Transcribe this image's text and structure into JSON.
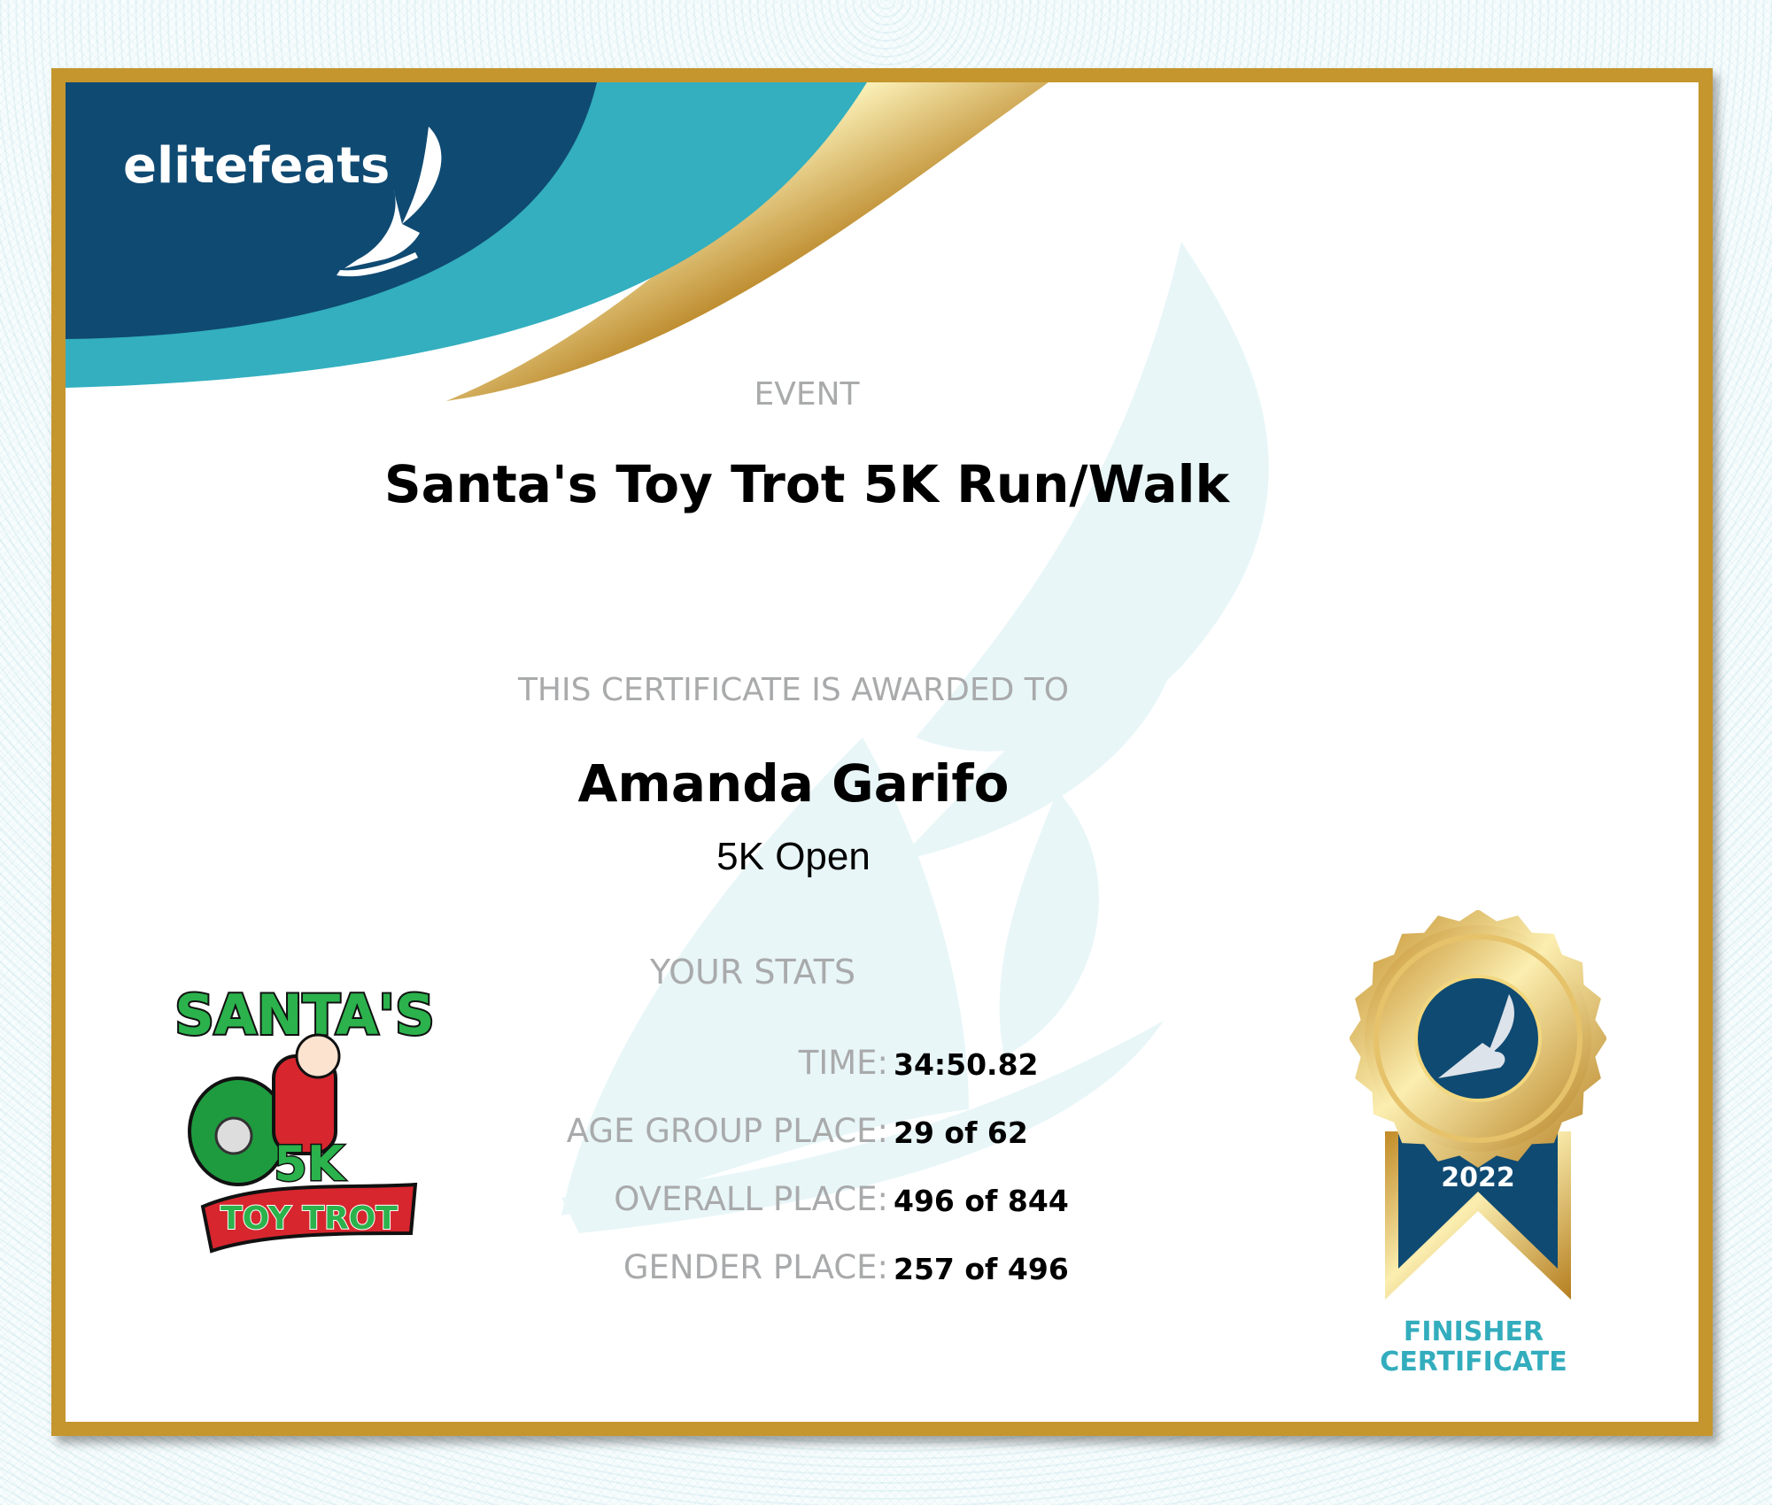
{
  "brand": {
    "logo_text": "elitefeats",
    "logo_icon": "winged-foot-icon"
  },
  "colors": {
    "navy": "#0f4a72",
    "teal": "#33afbf",
    "gold": "#c4962d",
    "label_gray": "#a9aaab"
  },
  "event": {
    "label": "EVENT",
    "title": "Santa's Toy Trot 5K Run/Walk"
  },
  "award": {
    "label": "THIS CERTIFICATE IS AWARDED TO",
    "name": "Amanda Garifo",
    "division": "5K Open"
  },
  "stats": {
    "heading": "YOUR STATS",
    "rows": [
      {
        "label": "TIME:",
        "value": "34:50.82"
      },
      {
        "label": "AGE GROUP PLACE:",
        "value": "29 of 62"
      },
      {
        "label": "OVERALL PLACE:",
        "value": "496 of 844"
      },
      {
        "label": "GENDER PLACE:",
        "value": "257 of 496"
      }
    ]
  },
  "event_logo": {
    "lines": [
      "SANTA'S",
      "5K",
      "TOY TROT"
    ]
  },
  "medal": {
    "year": "2022",
    "line1": "FINISHER",
    "line2": "CERTIFICATE"
  }
}
